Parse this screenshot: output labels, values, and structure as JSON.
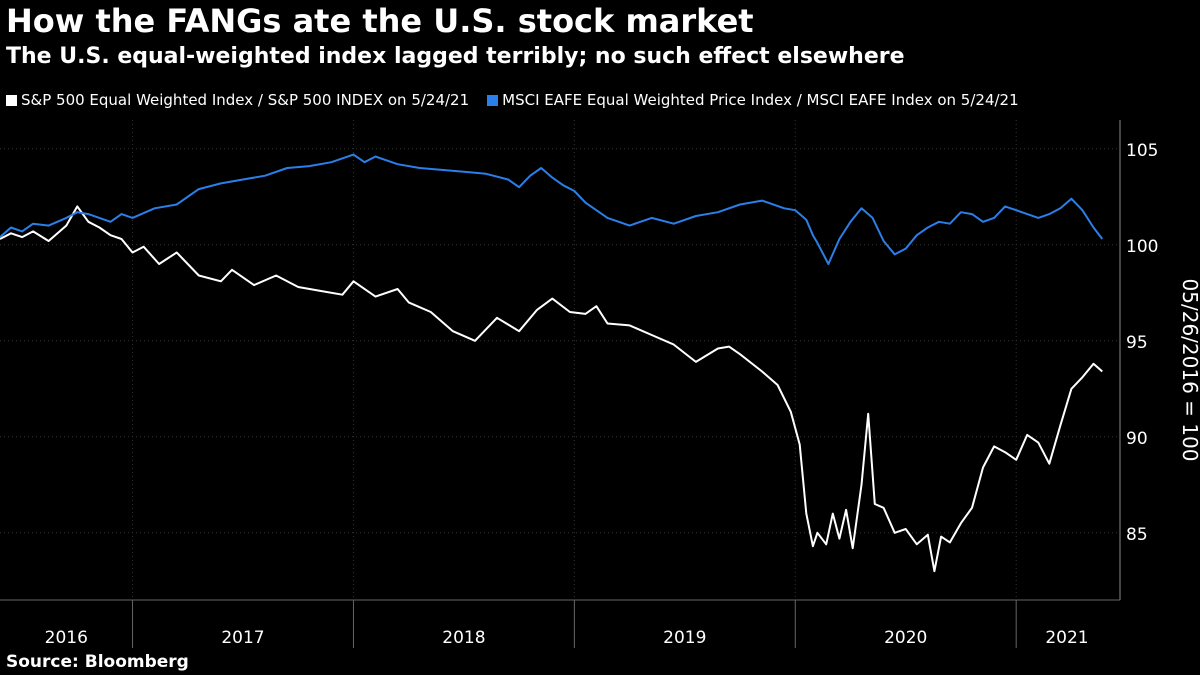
{
  "title": "How the FANGs ate the U.S. stock market",
  "subtitle": "The U.S. equal-weighted index lagged terribly; no such effect elsewhere",
  "source": "Source: Bloomberg",
  "colors": {
    "background": "#000000",
    "us_series": "#ffffff",
    "eafe_series": "#2a7fe8",
    "grid": "#333333"
  },
  "chart_data": {
    "type": "line",
    "title": "How the FANGs ate the U.S. stock market",
    "ylabel": "05/26/2016 = 100",
    "xlabel": "",
    "ylim": [
      81.5,
      106.5
    ],
    "xlim": [
      2016.4,
      2021.47
    ],
    "yticks": [
      85,
      90,
      95,
      100,
      105
    ],
    "ytick_labels": [
      "85",
      "90",
      "95",
      "100",
      "105"
    ],
    "year_boundaries": [
      2017.0,
      2018.0,
      2019.0,
      2020.0,
      2021.0
    ],
    "year_labels": [
      {
        "label": "2016",
        "x": 2016.7
      },
      {
        "label": "2017",
        "x": 2017.5
      },
      {
        "label": "2018",
        "x": 2018.5
      },
      {
        "label": "2019",
        "x": 2019.5
      },
      {
        "label": "2020",
        "x": 2020.5
      },
      {
        "label": "2021",
        "x": 2021.23
      }
    ],
    "grid": true,
    "series": [
      {
        "name": "S&P 500 Equal Weighted Index / S&P 500 INDEX on 5/24/21",
        "color": "#ffffff",
        "x": [
          2016.4,
          2016.45,
          2016.5,
          2016.55,
          2016.62,
          2016.7,
          2016.75,
          2016.8,
          2016.85,
          2016.9,
          2016.95,
          2017.0,
          2017.05,
          2017.12,
          2017.2,
          2017.3,
          2017.4,
          2017.45,
          2017.55,
          2017.65,
          2017.75,
          2017.85,
          2017.95,
          2018.0,
          2018.1,
          2018.2,
          2018.25,
          2018.35,
          2018.45,
          2018.55,
          2018.65,
          2018.75,
          2018.83,
          2018.9,
          2018.98,
          2019.05,
          2019.1,
          2019.15,
          2019.25,
          2019.35,
          2019.45,
          2019.55,
          2019.65,
          2019.7,
          2019.75,
          2019.85,
          2019.92,
          2019.98,
          2020.02,
          2020.05,
          2020.08,
          2020.1,
          2020.14,
          2020.17,
          2020.2,
          2020.23,
          2020.26,
          2020.3,
          2020.33,
          2020.36,
          2020.4,
          2020.45,
          2020.5,
          2020.55,
          2020.6,
          2020.63,
          2020.66,
          2020.7,
          2020.75,
          2020.8,
          2020.85,
          2020.9,
          2020.95,
          2021.0,
          2021.05,
          2021.1,
          2021.15,
          2021.2,
          2021.25,
          2021.3,
          2021.35,
          2021.39
        ],
        "values": [
          100.3,
          100.6,
          100.4,
          100.7,
          100.2,
          101.0,
          102.0,
          101.2,
          100.9,
          100.5,
          100.3,
          99.6,
          99.9,
          99.0,
          99.6,
          98.4,
          98.1,
          98.7,
          97.9,
          98.4,
          97.8,
          97.6,
          97.4,
          98.1,
          97.3,
          97.7,
          97.0,
          96.5,
          95.5,
          95.0,
          96.2,
          95.5,
          96.6,
          97.2,
          96.5,
          96.4,
          96.8,
          95.9,
          95.8,
          95.3,
          94.8,
          93.9,
          94.6,
          94.7,
          94.3,
          93.4,
          92.7,
          91.3,
          89.6,
          86.0,
          84.3,
          85.0,
          84.4,
          86.0,
          84.7,
          86.2,
          84.2,
          87.5,
          91.2,
          86.5,
          86.3,
          85.0,
          85.2,
          84.4,
          84.9,
          83.0,
          84.8,
          84.5,
          85.5,
          86.3,
          88.4,
          89.5,
          89.2,
          88.8,
          90.1,
          89.7,
          88.6,
          90.6,
          92.5,
          93.1,
          93.8,
          93.4
        ]
      },
      {
        "name": "MSCI EAFE Equal Weighted Price Index / MSCI EAFE Index on 5/24/21",
        "color": "#2a7fe8",
        "x": [
          2016.4,
          2016.45,
          2016.5,
          2016.55,
          2016.62,
          2016.7,
          2016.75,
          2016.8,
          2016.85,
          2016.9,
          2016.95,
          2017.0,
          2017.1,
          2017.2,
          2017.3,
          2017.4,
          2017.5,
          2017.6,
          2017.7,
          2017.8,
          2017.9,
          2018.0,
          2018.05,
          2018.1,
          2018.2,
          2018.3,
          2018.4,
          2018.5,
          2018.6,
          2018.7,
          2018.75,
          2018.8,
          2018.85,
          2018.9,
          2018.95,
          2019.0,
          2019.05,
          2019.15,
          2019.25,
          2019.35,
          2019.45,
          2019.55,
          2019.65,
          2019.75,
          2019.85,
          2019.95,
          2020.0,
          2020.05,
          2020.08,
          2020.1,
          2020.15,
          2020.2,
          2020.25,
          2020.3,
          2020.35,
          2020.4,
          2020.45,
          2020.5,
          2020.55,
          2020.6,
          2020.65,
          2020.7,
          2020.75,
          2020.8,
          2020.85,
          2020.9,
          2020.95,
          2021.0,
          2021.05,
          2021.1,
          2021.15,
          2021.2,
          2021.25,
          2021.3,
          2021.35,
          2021.39
        ],
        "values": [
          100.4,
          100.9,
          100.7,
          101.1,
          101.0,
          101.4,
          101.7,
          101.6,
          101.4,
          101.2,
          101.6,
          101.4,
          101.9,
          102.1,
          102.9,
          103.2,
          103.4,
          103.6,
          104.0,
          104.1,
          104.3,
          104.7,
          104.3,
          104.6,
          104.2,
          104.0,
          103.9,
          103.8,
          103.7,
          103.4,
          103.0,
          103.6,
          104.0,
          103.5,
          103.1,
          102.8,
          102.2,
          101.4,
          101.0,
          101.4,
          101.1,
          101.5,
          101.7,
          102.1,
          102.3,
          101.9,
          101.8,
          101.3,
          100.5,
          100.1,
          99.0,
          100.3,
          101.2,
          101.9,
          101.4,
          100.2,
          99.5,
          99.8,
          100.5,
          100.9,
          101.2,
          101.1,
          101.7,
          101.6,
          101.2,
          101.4,
          102.0,
          101.8,
          101.6,
          101.4,
          101.6,
          101.9,
          102.4,
          101.8,
          100.9,
          100.3
        ]
      }
    ]
  }
}
